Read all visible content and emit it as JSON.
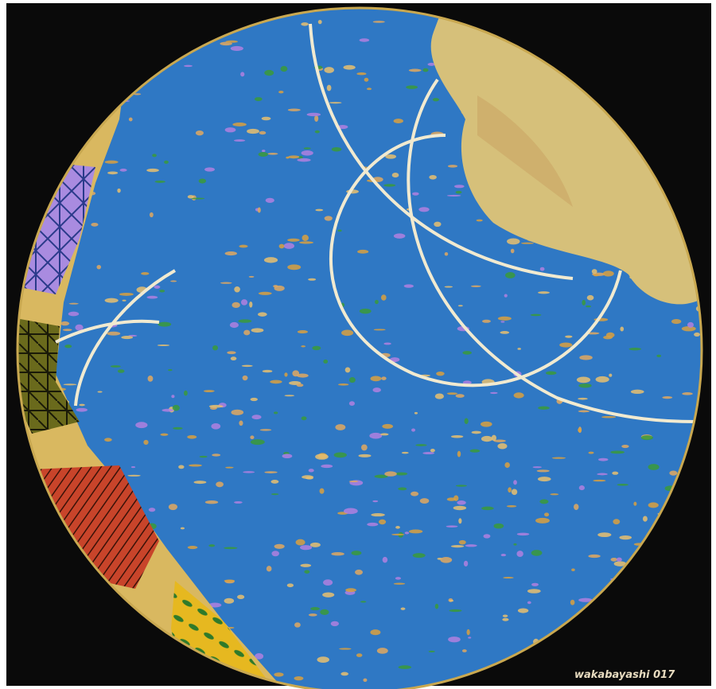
{
  "artwork": {
    "signature": "wakabayashi 017"
  }
}
